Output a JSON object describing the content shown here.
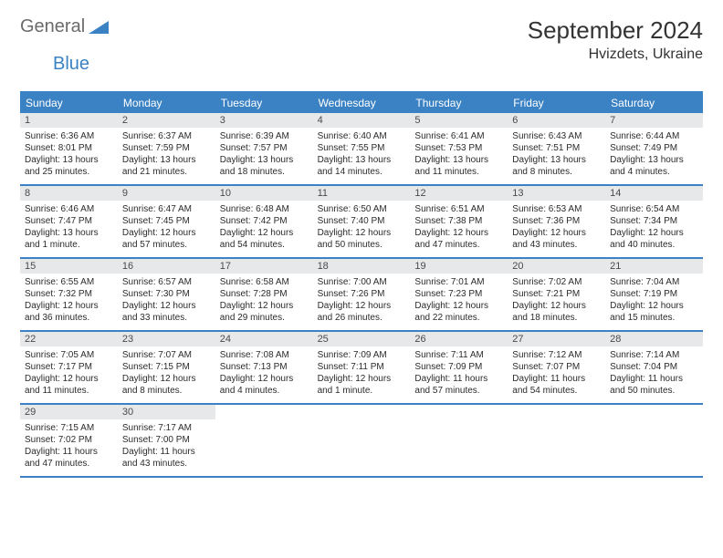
{
  "logo": {
    "text1": "General",
    "text2": "Blue"
  },
  "title": "September 2024",
  "location": "Hvizdets, Ukraine",
  "day_names": [
    "Sunday",
    "Monday",
    "Tuesday",
    "Wednesday",
    "Thursday",
    "Friday",
    "Saturday"
  ],
  "colors": {
    "header_bg": "#3b82c4",
    "daynum_bg": "#e7e8ea",
    "border": "#3b82c4"
  },
  "weeks": [
    [
      {
        "n": "1",
        "sr": "Sunrise: 6:36 AM",
        "ss": "Sunset: 8:01 PM",
        "dl1": "Daylight: 13 hours",
        "dl2": "and 25 minutes."
      },
      {
        "n": "2",
        "sr": "Sunrise: 6:37 AM",
        "ss": "Sunset: 7:59 PM",
        "dl1": "Daylight: 13 hours",
        "dl2": "and 21 minutes."
      },
      {
        "n": "3",
        "sr": "Sunrise: 6:39 AM",
        "ss": "Sunset: 7:57 PM",
        "dl1": "Daylight: 13 hours",
        "dl2": "and 18 minutes."
      },
      {
        "n": "4",
        "sr": "Sunrise: 6:40 AM",
        "ss": "Sunset: 7:55 PM",
        "dl1": "Daylight: 13 hours",
        "dl2": "and 14 minutes."
      },
      {
        "n": "5",
        "sr": "Sunrise: 6:41 AM",
        "ss": "Sunset: 7:53 PM",
        "dl1": "Daylight: 13 hours",
        "dl2": "and 11 minutes."
      },
      {
        "n": "6",
        "sr": "Sunrise: 6:43 AM",
        "ss": "Sunset: 7:51 PM",
        "dl1": "Daylight: 13 hours",
        "dl2": "and 8 minutes."
      },
      {
        "n": "7",
        "sr": "Sunrise: 6:44 AM",
        "ss": "Sunset: 7:49 PM",
        "dl1": "Daylight: 13 hours",
        "dl2": "and 4 minutes."
      }
    ],
    [
      {
        "n": "8",
        "sr": "Sunrise: 6:46 AM",
        "ss": "Sunset: 7:47 PM",
        "dl1": "Daylight: 13 hours",
        "dl2": "and 1 minute."
      },
      {
        "n": "9",
        "sr": "Sunrise: 6:47 AM",
        "ss": "Sunset: 7:45 PM",
        "dl1": "Daylight: 12 hours",
        "dl2": "and 57 minutes."
      },
      {
        "n": "10",
        "sr": "Sunrise: 6:48 AM",
        "ss": "Sunset: 7:42 PM",
        "dl1": "Daylight: 12 hours",
        "dl2": "and 54 minutes."
      },
      {
        "n": "11",
        "sr": "Sunrise: 6:50 AM",
        "ss": "Sunset: 7:40 PM",
        "dl1": "Daylight: 12 hours",
        "dl2": "and 50 minutes."
      },
      {
        "n": "12",
        "sr": "Sunrise: 6:51 AM",
        "ss": "Sunset: 7:38 PM",
        "dl1": "Daylight: 12 hours",
        "dl2": "and 47 minutes."
      },
      {
        "n": "13",
        "sr": "Sunrise: 6:53 AM",
        "ss": "Sunset: 7:36 PM",
        "dl1": "Daylight: 12 hours",
        "dl2": "and 43 minutes."
      },
      {
        "n": "14",
        "sr": "Sunrise: 6:54 AM",
        "ss": "Sunset: 7:34 PM",
        "dl1": "Daylight: 12 hours",
        "dl2": "and 40 minutes."
      }
    ],
    [
      {
        "n": "15",
        "sr": "Sunrise: 6:55 AM",
        "ss": "Sunset: 7:32 PM",
        "dl1": "Daylight: 12 hours",
        "dl2": "and 36 minutes."
      },
      {
        "n": "16",
        "sr": "Sunrise: 6:57 AM",
        "ss": "Sunset: 7:30 PM",
        "dl1": "Daylight: 12 hours",
        "dl2": "and 33 minutes."
      },
      {
        "n": "17",
        "sr": "Sunrise: 6:58 AM",
        "ss": "Sunset: 7:28 PM",
        "dl1": "Daylight: 12 hours",
        "dl2": "and 29 minutes."
      },
      {
        "n": "18",
        "sr": "Sunrise: 7:00 AM",
        "ss": "Sunset: 7:26 PM",
        "dl1": "Daylight: 12 hours",
        "dl2": "and 26 minutes."
      },
      {
        "n": "19",
        "sr": "Sunrise: 7:01 AM",
        "ss": "Sunset: 7:23 PM",
        "dl1": "Daylight: 12 hours",
        "dl2": "and 22 minutes."
      },
      {
        "n": "20",
        "sr": "Sunrise: 7:02 AM",
        "ss": "Sunset: 7:21 PM",
        "dl1": "Daylight: 12 hours",
        "dl2": "and 18 minutes."
      },
      {
        "n": "21",
        "sr": "Sunrise: 7:04 AM",
        "ss": "Sunset: 7:19 PM",
        "dl1": "Daylight: 12 hours",
        "dl2": "and 15 minutes."
      }
    ],
    [
      {
        "n": "22",
        "sr": "Sunrise: 7:05 AM",
        "ss": "Sunset: 7:17 PM",
        "dl1": "Daylight: 12 hours",
        "dl2": "and 11 minutes."
      },
      {
        "n": "23",
        "sr": "Sunrise: 7:07 AM",
        "ss": "Sunset: 7:15 PM",
        "dl1": "Daylight: 12 hours",
        "dl2": "and 8 minutes."
      },
      {
        "n": "24",
        "sr": "Sunrise: 7:08 AM",
        "ss": "Sunset: 7:13 PM",
        "dl1": "Daylight: 12 hours",
        "dl2": "and 4 minutes."
      },
      {
        "n": "25",
        "sr": "Sunrise: 7:09 AM",
        "ss": "Sunset: 7:11 PM",
        "dl1": "Daylight: 12 hours",
        "dl2": "and 1 minute."
      },
      {
        "n": "26",
        "sr": "Sunrise: 7:11 AM",
        "ss": "Sunset: 7:09 PM",
        "dl1": "Daylight: 11 hours",
        "dl2": "and 57 minutes."
      },
      {
        "n": "27",
        "sr": "Sunrise: 7:12 AM",
        "ss": "Sunset: 7:07 PM",
        "dl1": "Daylight: 11 hours",
        "dl2": "and 54 minutes."
      },
      {
        "n": "28",
        "sr": "Sunrise: 7:14 AM",
        "ss": "Sunset: 7:04 PM",
        "dl1": "Daylight: 11 hours",
        "dl2": "and 50 minutes."
      }
    ],
    [
      {
        "n": "29",
        "sr": "Sunrise: 7:15 AM",
        "ss": "Sunset: 7:02 PM",
        "dl1": "Daylight: 11 hours",
        "dl2": "and 47 minutes."
      },
      {
        "n": "30",
        "sr": "Sunrise: 7:17 AM",
        "ss": "Sunset: 7:00 PM",
        "dl1": "Daylight: 11 hours",
        "dl2": "and 43 minutes."
      },
      {
        "empty": true
      },
      {
        "empty": true
      },
      {
        "empty": true
      },
      {
        "empty": true
      },
      {
        "empty": true
      }
    ]
  ]
}
